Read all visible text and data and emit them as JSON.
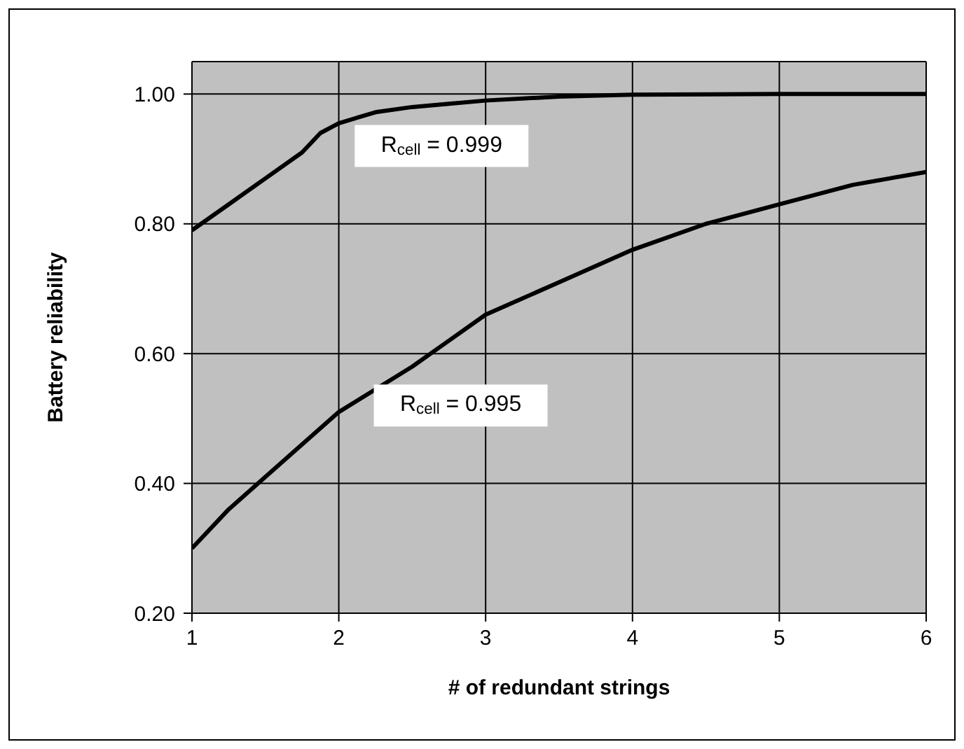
{
  "chart_data": {
    "type": "line",
    "xlabel": "# of redundant strings",
    "ylabel": "Battery reliability",
    "xlim": [
      1,
      6
    ],
    "xticks": [
      1,
      2,
      3,
      4,
      5,
      6
    ],
    "ylim": [
      0.2,
      1.05
    ],
    "yticks": [
      {
        "value": 0.2,
        "label": "0.20"
      },
      {
        "value": 0.4,
        "label": "0.40"
      },
      {
        "value": 0.6,
        "label": "0.60"
      },
      {
        "value": 0.8,
        "label": "0.80"
      },
      {
        "value": 1.0,
        "label": "1.00"
      }
    ],
    "grid": true,
    "marker": "none",
    "line_style": "solid",
    "series": [
      {
        "name": "R$_{cell}$ = 0.999",
        "color": "#000000",
        "x": [
          1,
          1.25,
          1.5,
          1.75,
          1.875,
          2,
          2.25,
          2.5,
          2.75,
          3,
          3.5,
          4,
          5,
          6
        ],
        "values": [
          0.79,
          0.83,
          0.87,
          0.91,
          0.94,
          0.955,
          0.972,
          0.98,
          0.985,
          0.99,
          0.996,
          0.999,
          1.0,
          1.0
        ]
      },
      {
        "name": "R$_{cell}$ = 0.995",
        "color": "#000000",
        "x": [
          1,
          1.25,
          1.5,
          2,
          2.5,
          2.75,
          3,
          3.5,
          4,
          4.5,
          5,
          5.5,
          6
        ],
        "values": [
          0.3,
          0.36,
          0.41,
          0.51,
          0.58,
          0.62,
          0.66,
          0.71,
          0.76,
          0.8,
          0.83,
          0.86,
          0.88
        ]
      }
    ]
  }
}
